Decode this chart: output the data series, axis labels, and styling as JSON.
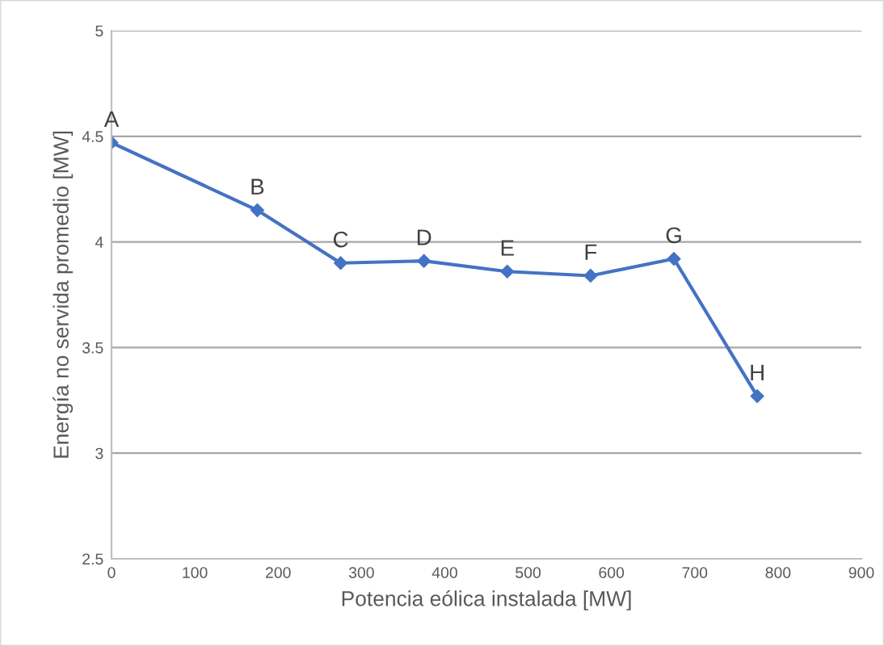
{
  "chart_data": {
    "type": "line",
    "xlabel": "Potencia eólica instalada [MW]",
    "ylabel": "Energía no servida promedio [MW]",
    "x": [
      0,
      175,
      275,
      375,
      475,
      575,
      675,
      775
    ],
    "series": [
      {
        "color": "#4472c4",
        "values": [
          4.47,
          4.15,
          3.9,
          3.91,
          3.86,
          3.84,
          3.92,
          3.27
        ]
      }
    ],
    "xlim": [
      0,
      900
    ],
    "xticks": [
      0,
      100,
      200,
      300,
      400,
      500,
      600,
      700,
      800,
      900
    ],
    "ylim": [
      2.5,
      5
    ],
    "yticks": [
      2.5,
      3,
      3.5,
      4,
      4.5,
      5
    ],
    "grid": "y",
    "marker": "diamond",
    "line_style": "solid",
    "annotations": [
      {
        "text": "A",
        "x": 0,
        "y": 4.47
      },
      {
        "text": "B",
        "x": 175,
        "y": 4.15
      },
      {
        "text": "C",
        "x": 275,
        "y": 3.9
      },
      {
        "text": "D",
        "x": 375,
        "y": 3.91
      },
      {
        "text": "E",
        "x": 475,
        "y": 3.86
      },
      {
        "text": "F",
        "x": 575,
        "y": 3.84
      },
      {
        "text": "G",
        "x": 675,
        "y": 3.92
      },
      {
        "text": "H",
        "x": 775,
        "y": 3.27
      }
    ]
  }
}
